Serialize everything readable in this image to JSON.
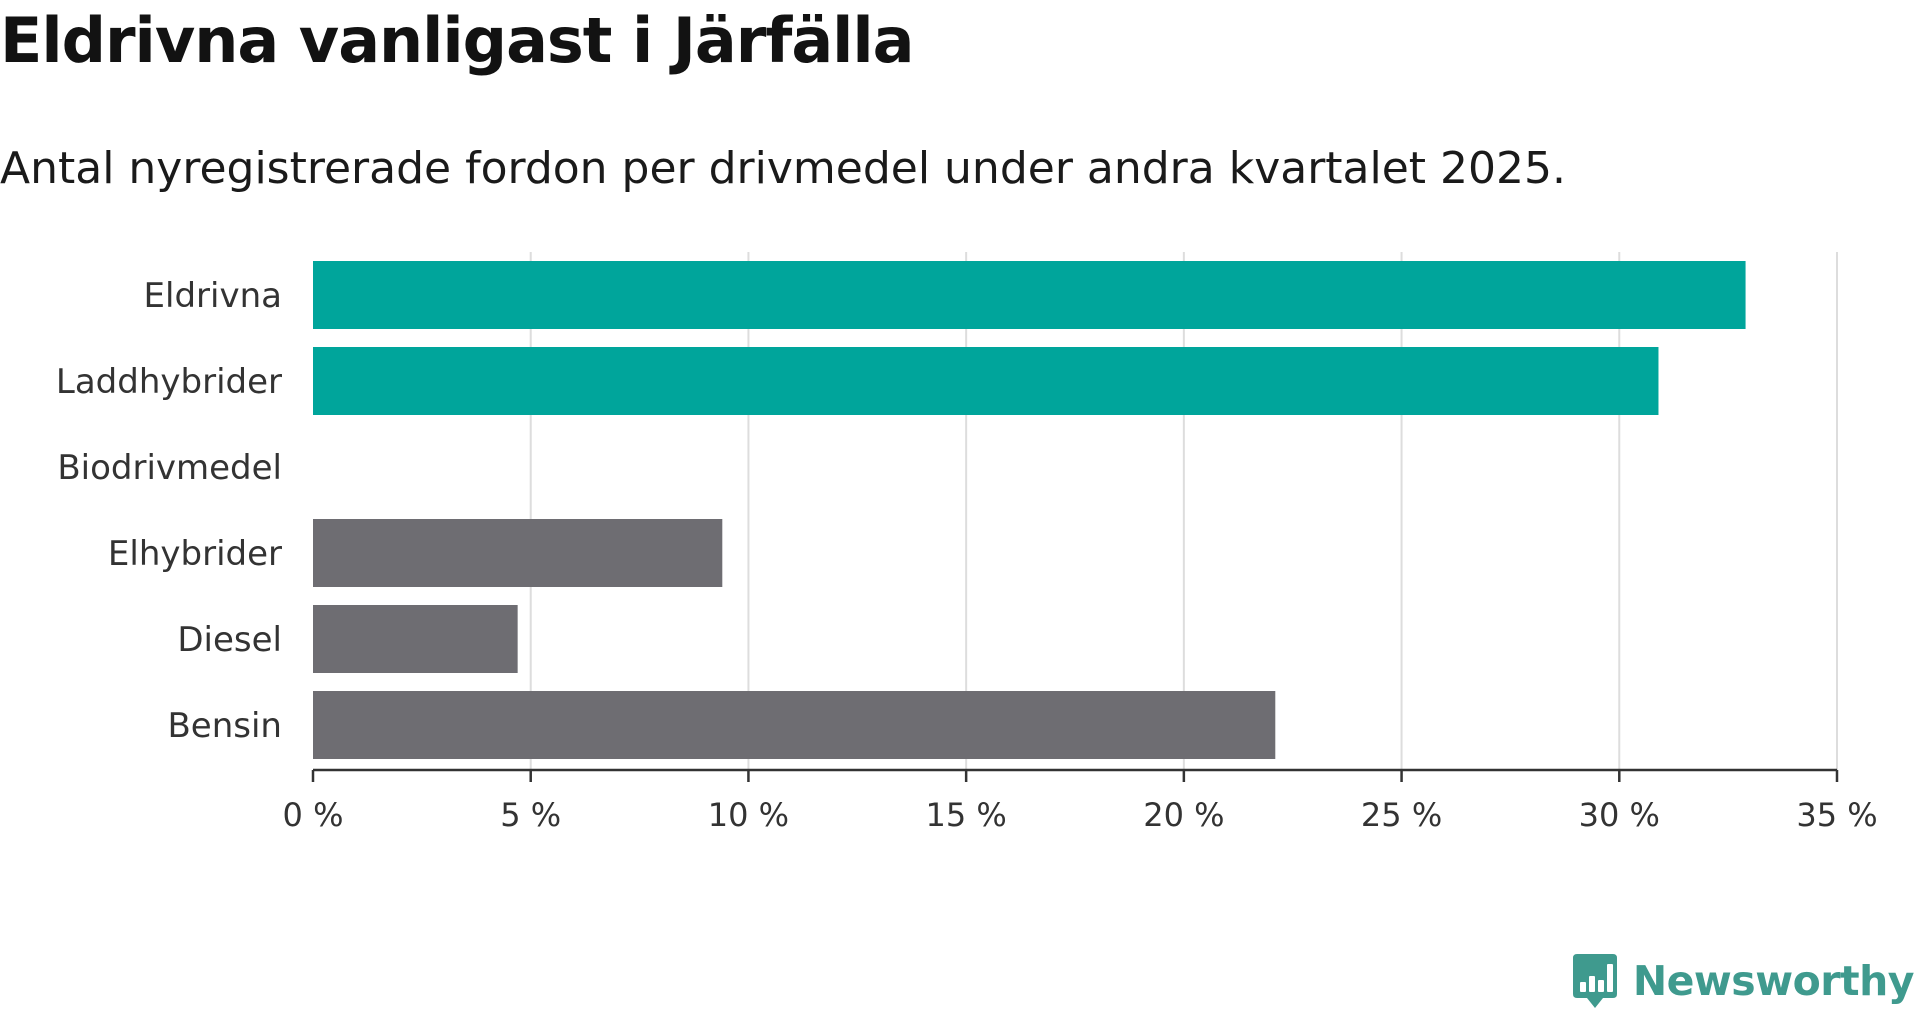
{
  "header": {
    "title": "Eldrivna vanligast i Järfälla",
    "subtitle": "Antal nyregistrerade fordon per drivmedel under andra kvartalet 2025."
  },
  "chart_data": {
    "type": "bar",
    "orientation": "horizontal",
    "title": "Eldrivna vanligast i Järfälla",
    "subtitle": "Antal nyregistrerade fordon per drivmedel under andra kvartalet 2025.",
    "xlabel": "",
    "ylabel": "",
    "categories": [
      "Eldrivna",
      "Laddhybrider",
      "Biodrivmedel",
      "Elhybrider",
      "Diesel",
      "Bensin"
    ],
    "values": [
      32.9,
      30.9,
      0,
      9.4,
      4.7,
      22.1
    ],
    "unit": "%",
    "xlim": [
      0,
      35
    ],
    "ticks": [
      0,
      5,
      10,
      15,
      20,
      25,
      30,
      35
    ],
    "tick_labels": [
      "0 %",
      "5 %",
      "10 %",
      "15 %",
      "20 %",
      "25 %",
      "30 %",
      "35 %"
    ],
    "grid": true,
    "colors": {
      "highlight": "#00a59b",
      "default": "#6e6d72",
      "grid": "#dddddd",
      "axis": "#333333"
    },
    "highlighted": [
      "Eldrivna",
      "Laddhybrider"
    ]
  },
  "brand": {
    "name": "Newsworthy",
    "color": "#3f9a8e",
    "logo_icon": "bar-chart-speech-bubble-icon"
  }
}
